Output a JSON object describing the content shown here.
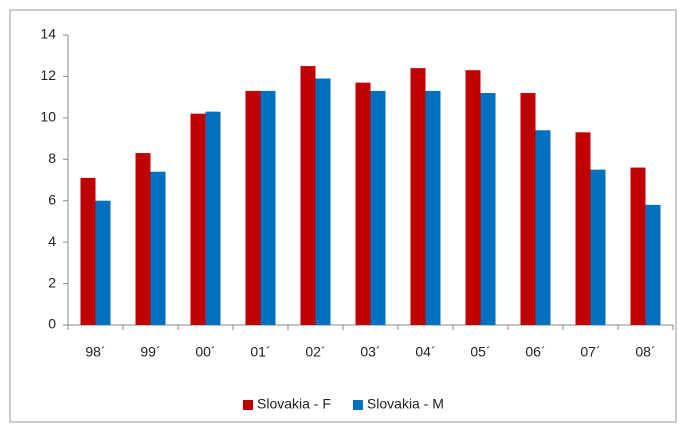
{
  "chart_data": {
    "type": "bar",
    "categories": [
      "98´",
      "99´",
      "00´",
      "01´",
      "02´",
      "03´",
      "04´",
      "05´",
      "06´",
      "07´",
      "08´"
    ],
    "series": [
      {
        "name": "Slovakia - F",
        "color": "#c00000",
        "values": [
          7.1,
          8.3,
          10.2,
          11.3,
          12.5,
          11.7,
          12.4,
          12.3,
          11.2,
          9.3,
          7.6
        ]
      },
      {
        "name": "Slovakia - M",
        "color": "#0070c0",
        "values": [
          6.0,
          7.4,
          10.3,
          11.3,
          11.9,
          11.3,
          11.3,
          11.2,
          9.4,
          7.5,
          5.8
        ]
      }
    ],
    "ylim": [
      0,
      14
    ],
    "yticks": [
      0,
      2,
      4,
      6,
      8,
      10,
      12,
      14
    ],
    "grid": false,
    "legend": "bottom"
  }
}
